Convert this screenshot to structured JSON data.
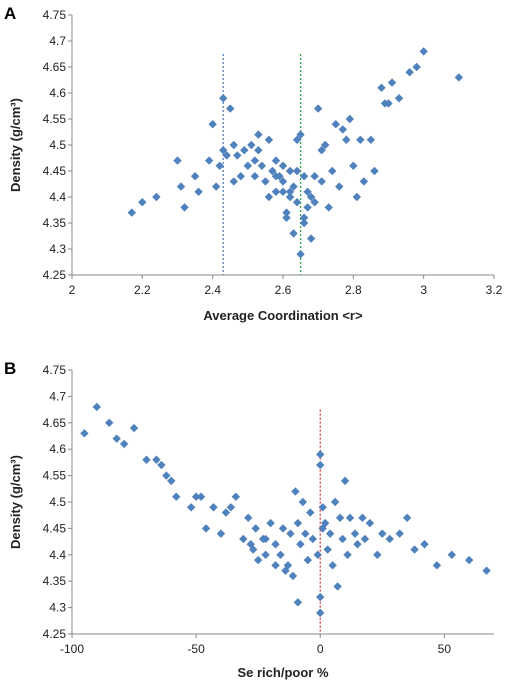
{
  "chart_data": [
    {
      "panel_label": "A",
      "type": "scatter",
      "title": "",
      "xlabel": "Average Coordination <r>",
      "ylabel": "Density (g/cm³)",
      "xlim": [
        2,
        3.2
      ],
      "ylim": [
        4.25,
        4.75
      ],
      "xticks": [
        "2",
        "2.2",
        "2.4",
        "2.6",
        "2.8",
        "3",
        "3.2"
      ],
      "yticks": [
        "4.25",
        "4.3",
        "4.35",
        "4.4",
        "4.45",
        "4.5",
        "4.55",
        "4.6",
        "4.65",
        "4.7",
        "4.75"
      ],
      "grid": false,
      "marker_color": "#4F81BD",
      "vlines": [
        {
          "x": 2.43,
          "color": "#4F81BD",
          "style": "dotted",
          "y_top": 4.675
        },
        {
          "x": 2.65,
          "color": "#2EAA4A",
          "style": "dotted",
          "y_top": 4.675
        }
      ],
      "series": [
        {
          "points": [
            [
              2.17,
              4.37
            ],
            [
              2.2,
              4.39
            ],
            [
              2.24,
              4.4
            ],
            [
              2.3,
              4.47
            ],
            [
              2.31,
              4.42
            ],
            [
              2.32,
              4.38
            ],
            [
              2.35,
              4.44
            ],
            [
              2.36,
              4.41
            ],
            [
              2.39,
              4.47
            ],
            [
              2.4,
              4.54
            ],
            [
              2.41,
              4.42
            ],
            [
              2.42,
              4.46
            ],
            [
              2.43,
              4.49
            ],
            [
              2.43,
              4.59
            ],
            [
              2.44,
              4.48
            ],
            [
              2.45,
              4.57
            ],
            [
              2.46,
              4.5
            ],
            [
              2.46,
              4.43
            ],
            [
              2.47,
              4.48
            ],
            [
              2.48,
              4.44
            ],
            [
              2.49,
              4.49
            ],
            [
              2.5,
              4.46
            ],
            [
              2.51,
              4.5
            ],
            [
              2.52,
              4.47
            ],
            [
              2.52,
              4.44
            ],
            [
              2.53,
              4.52
            ],
            [
              2.53,
              4.49
            ],
            [
              2.54,
              4.46
            ],
            [
              2.55,
              4.43
            ],
            [
              2.56,
              4.51
            ],
            [
              2.57,
              4.45
            ],
            [
              2.58,
              4.41
            ],
            [
              2.58,
              4.47
            ],
            [
              2.59,
              4.44
            ],
            [
              2.6,
              4.46
            ],
            [
              2.6,
              4.43
            ],
            [
              2.61,
              4.37
            ],
            [
              2.61,
              4.36
            ],
            [
              2.62,
              4.45
            ],
            [
              2.62,
              4.4
            ],
            [
              2.63,
              4.42
            ],
            [
              2.63,
              4.33
            ],
            [
              2.64,
              4.39
            ],
            [
              2.64,
              4.45
            ],
            [
              2.65,
              4.52
            ],
            [
              2.65,
              4.29
            ],
            [
              2.66,
              4.44
            ],
            [
              2.66,
              4.36
            ],
            [
              2.67,
              4.41
            ],
            [
              2.67,
              4.38
            ],
            [
              2.68,
              4.32
            ],
            [
              2.69,
              4.39
            ],
            [
              2.69,
              4.44
            ],
            [
              2.7,
              4.57
            ],
            [
              2.71,
              4.43
            ],
            [
              2.71,
              4.49
            ],
            [
              2.72,
              4.5
            ],
            [
              2.73,
              4.38
            ],
            [
              2.74,
              4.45
            ],
            [
              2.75,
              4.54
            ],
            [
              2.76,
              4.42
            ],
            [
              2.77,
              4.53
            ],
            [
              2.78,
              4.51
            ],
            [
              2.79,
              4.55
            ],
            [
              2.8,
              4.46
            ],
            [
              2.81,
              4.4
            ],
            [
              2.82,
              4.51
            ],
            [
              2.83,
              4.43
            ],
            [
              2.85,
              4.51
            ],
            [
              2.86,
              4.45
            ],
            [
              2.88,
              4.61
            ],
            [
              2.89,
              4.58
            ],
            [
              2.9,
              4.58
            ],
            [
              2.91,
              4.62
            ],
            [
              2.93,
              4.59
            ],
            [
              2.96,
              4.64
            ],
            [
              2.98,
              4.65
            ],
            [
              3.0,
              4.68
            ],
            [
              3.1,
              4.63
            ],
            [
              2.64,
              4.51
            ],
            [
              2.58,
              4.44
            ],
            [
              2.56,
              4.4
            ],
            [
              2.6,
              4.41
            ],
            [
              2.62,
              4.41
            ],
            [
              2.66,
              4.35
            ],
            [
              2.68,
              4.4
            ]
          ]
        }
      ]
    },
    {
      "panel_label": "B",
      "type": "scatter",
      "title": "",
      "xlabel": "Se rich/poor %",
      "ylabel": "Density (g/cm³)",
      "xlim": [
        -100,
        70
      ],
      "ylim": [
        4.25,
        4.75
      ],
      "xticks": [
        "-100",
        "-50",
        "0",
        "50"
      ],
      "yticks": [
        "4.25",
        "4.3",
        "4.35",
        "4.4",
        "4.45",
        "4.5",
        "4.55",
        "4.6",
        "4.65",
        "4.7",
        "4.75"
      ],
      "grid": false,
      "marker_color": "#4F81BD",
      "vlines": [
        {
          "x": 0,
          "color": "#D9383A",
          "style": "dotted",
          "y_top": 4.675
        }
      ],
      "series": [
        {
          "points": [
            [
              -95,
              4.63
            ],
            [
              -90,
              4.68
            ],
            [
              -85,
              4.65
            ],
            [
              -82,
              4.62
            ],
            [
              -79,
              4.61
            ],
            [
              -75,
              4.64
            ],
            [
              -70,
              4.58
            ],
            [
              -66,
              4.58
            ],
            [
              -64,
              4.57
            ],
            [
              -62,
              4.55
            ],
            [
              -60,
              4.54
            ],
            [
              -58,
              4.51
            ],
            [
              -52,
              4.49
            ],
            [
              -50,
              4.51
            ],
            [
              -48,
              4.51
            ],
            [
              -46,
              4.45
            ],
            [
              -43,
              4.49
            ],
            [
              -40,
              4.44
            ],
            [
              -38,
              4.48
            ],
            [
              -36,
              4.49
            ],
            [
              -34,
              4.51
            ],
            [
              -31,
              4.43
            ],
            [
              -29,
              4.47
            ],
            [
              -28,
              4.42
            ],
            [
              -26,
              4.45
            ],
            [
              -25,
              4.39
            ],
            [
              -23,
              4.43
            ],
            [
              -22,
              4.4
            ],
            [
              -20,
              4.46
            ],
            [
              -18,
              4.42
            ],
            [
              -16,
              4.4
            ],
            [
              -15,
              4.45
            ],
            [
              -13,
              4.38
            ],
            [
              -12,
              4.44
            ],
            [
              -11,
              4.36
            ],
            [
              -10,
              4.52
            ],
            [
              -9,
              4.46
            ],
            [
              -8,
              4.42
            ],
            [
              -7,
              4.5
            ],
            [
              -6,
              4.44
            ],
            [
              -5,
              4.39
            ],
            [
              -4,
              4.48
            ],
            [
              -3,
              4.43
            ],
            [
              -1,
              4.4
            ],
            [
              0,
              4.59
            ],
            [
              0,
              4.57
            ],
            [
              0,
              4.29
            ],
            [
              0,
              4.32
            ],
            [
              1,
              4.49
            ],
            [
              1,
              4.45
            ],
            [
              2,
              4.46
            ],
            [
              3,
              4.41
            ],
            [
              4,
              4.44
            ],
            [
              5,
              4.38
            ],
            [
              6,
              4.5
            ],
            [
              7,
              4.34
            ],
            [
              8,
              4.47
            ],
            [
              9,
              4.43
            ],
            [
              10,
              4.54
            ],
            [
              11,
              4.4
            ],
            [
              12,
              4.47
            ],
            [
              14,
              4.44
            ],
            [
              15,
              4.42
            ],
            [
              17,
              4.47
            ],
            [
              18,
              4.43
            ],
            [
              20,
              4.46
            ],
            [
              23,
              4.4
            ],
            [
              25,
              4.44
            ],
            [
              28,
              4.43
            ],
            [
              32,
              4.44
            ],
            [
              35,
              4.47
            ],
            [
              38,
              4.41
            ],
            [
              42,
              4.42
            ],
            [
              47,
              4.38
            ],
            [
              53,
              4.4
            ],
            [
              60,
              4.39
            ],
            [
              67,
              4.37
            ],
            [
              -22,
              4.43
            ],
            [
              -18,
              4.38
            ],
            [
              -14,
              4.37
            ],
            [
              -9,
              4.31
            ],
            [
              -27,
              4.41
            ]
          ]
        }
      ]
    }
  ]
}
